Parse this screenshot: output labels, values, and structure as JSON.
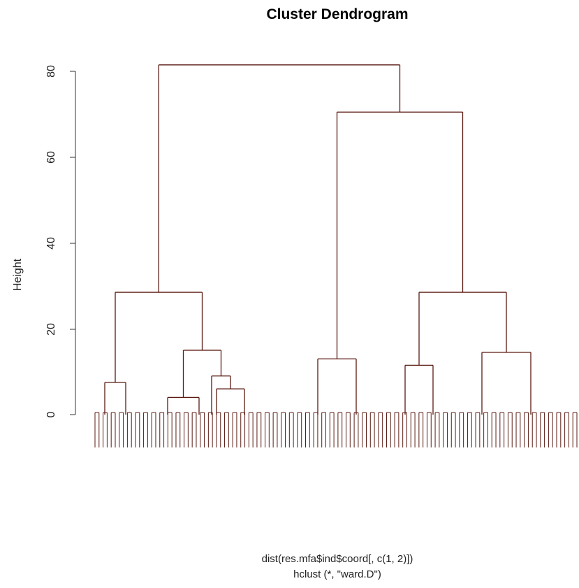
{
  "chart_data": {
    "type": "dendrogram",
    "title": "Cluster Dendrogram",
    "ylabel": "Height",
    "subtitle_line1": "dist(res.mfa$ind$coord[, c(1, 2)])",
    "subtitle_line2": "hclust (*, \"ward.D\")",
    "ylim": [
      0,
      80
    ],
    "yticks": [
      0,
      20,
      40,
      60,
      80
    ],
    "leaf_count": 120,
    "major_merges": [
      {
        "height": 81.5,
        "note": "root"
      },
      {
        "height": 70.5
      },
      {
        "height": 28.5
      },
      {
        "height": 28.5
      },
      {
        "height": 15.0
      },
      {
        "height": 14.5
      },
      {
        "height": 13.0
      },
      {
        "height": 11.5
      },
      {
        "height": 9.0
      },
      {
        "height": 7.5
      },
      {
        "height": 7.0
      },
      {
        "height": 6.0
      },
      {
        "height": 5.5
      }
    ]
  }
}
